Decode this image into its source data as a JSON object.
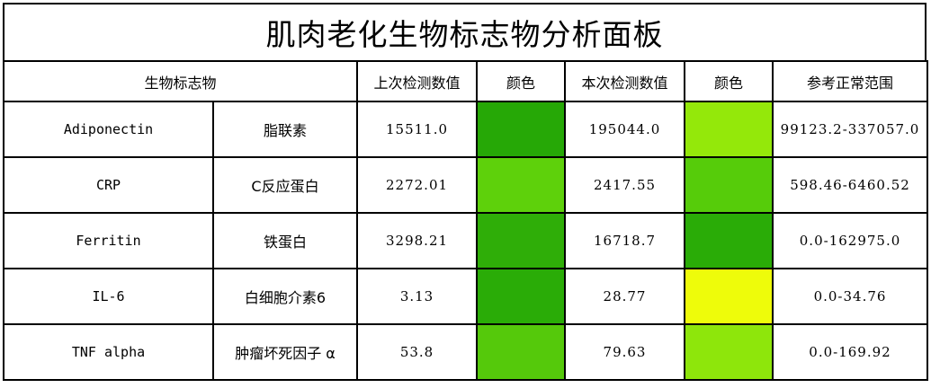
{
  "title": "肌肉老化生物标志物分析面板",
  "headers": {
    "biomarker": "生物标志物",
    "previous": "上次检测数值",
    "color1": "颜色",
    "current": "本次检测数值",
    "color2": "颜色",
    "range": "参考正常范围"
  },
  "rows": [
    {
      "name_en": "Adiponectin",
      "name_cn": "脂联素",
      "previous": "15511.0",
      "prev_color": "#26a806",
      "current": "195044.0",
      "curr_color": "#94e80a",
      "range": "99123.2-337057.0"
    },
    {
      "name_en": "CRP",
      "name_cn": "C反应蛋白",
      "previous": "2272.01",
      "prev_color": "#5ed10b",
      "current": "2417.55",
      "curr_color": "#56cc0a",
      "range": "598.46-6460.52"
    },
    {
      "name_en": "Ferritin",
      "name_cn": "铁蛋白",
      "previous": "3298.21",
      "prev_color": "#2fae08",
      "current": "16718.7",
      "curr_color": "#2aac07",
      "range": "0.0-162975.0"
    },
    {
      "name_en": "IL-6",
      "name_cn": "白细胞介素6",
      "previous": "3.13",
      "prev_color": "#2aac07",
      "current": "28.77",
      "curr_color": "#eefc0a",
      "range": "0.0-34.76"
    },
    {
      "name_en": "TNF alpha",
      "name_cn": "肿瘤坏死因子 α",
      "previous": "53.8",
      "prev_color": "#55c90b",
      "current": "79.63",
      "curr_color": "#8ee60b",
      "range": "0.0-169.92"
    }
  ]
}
